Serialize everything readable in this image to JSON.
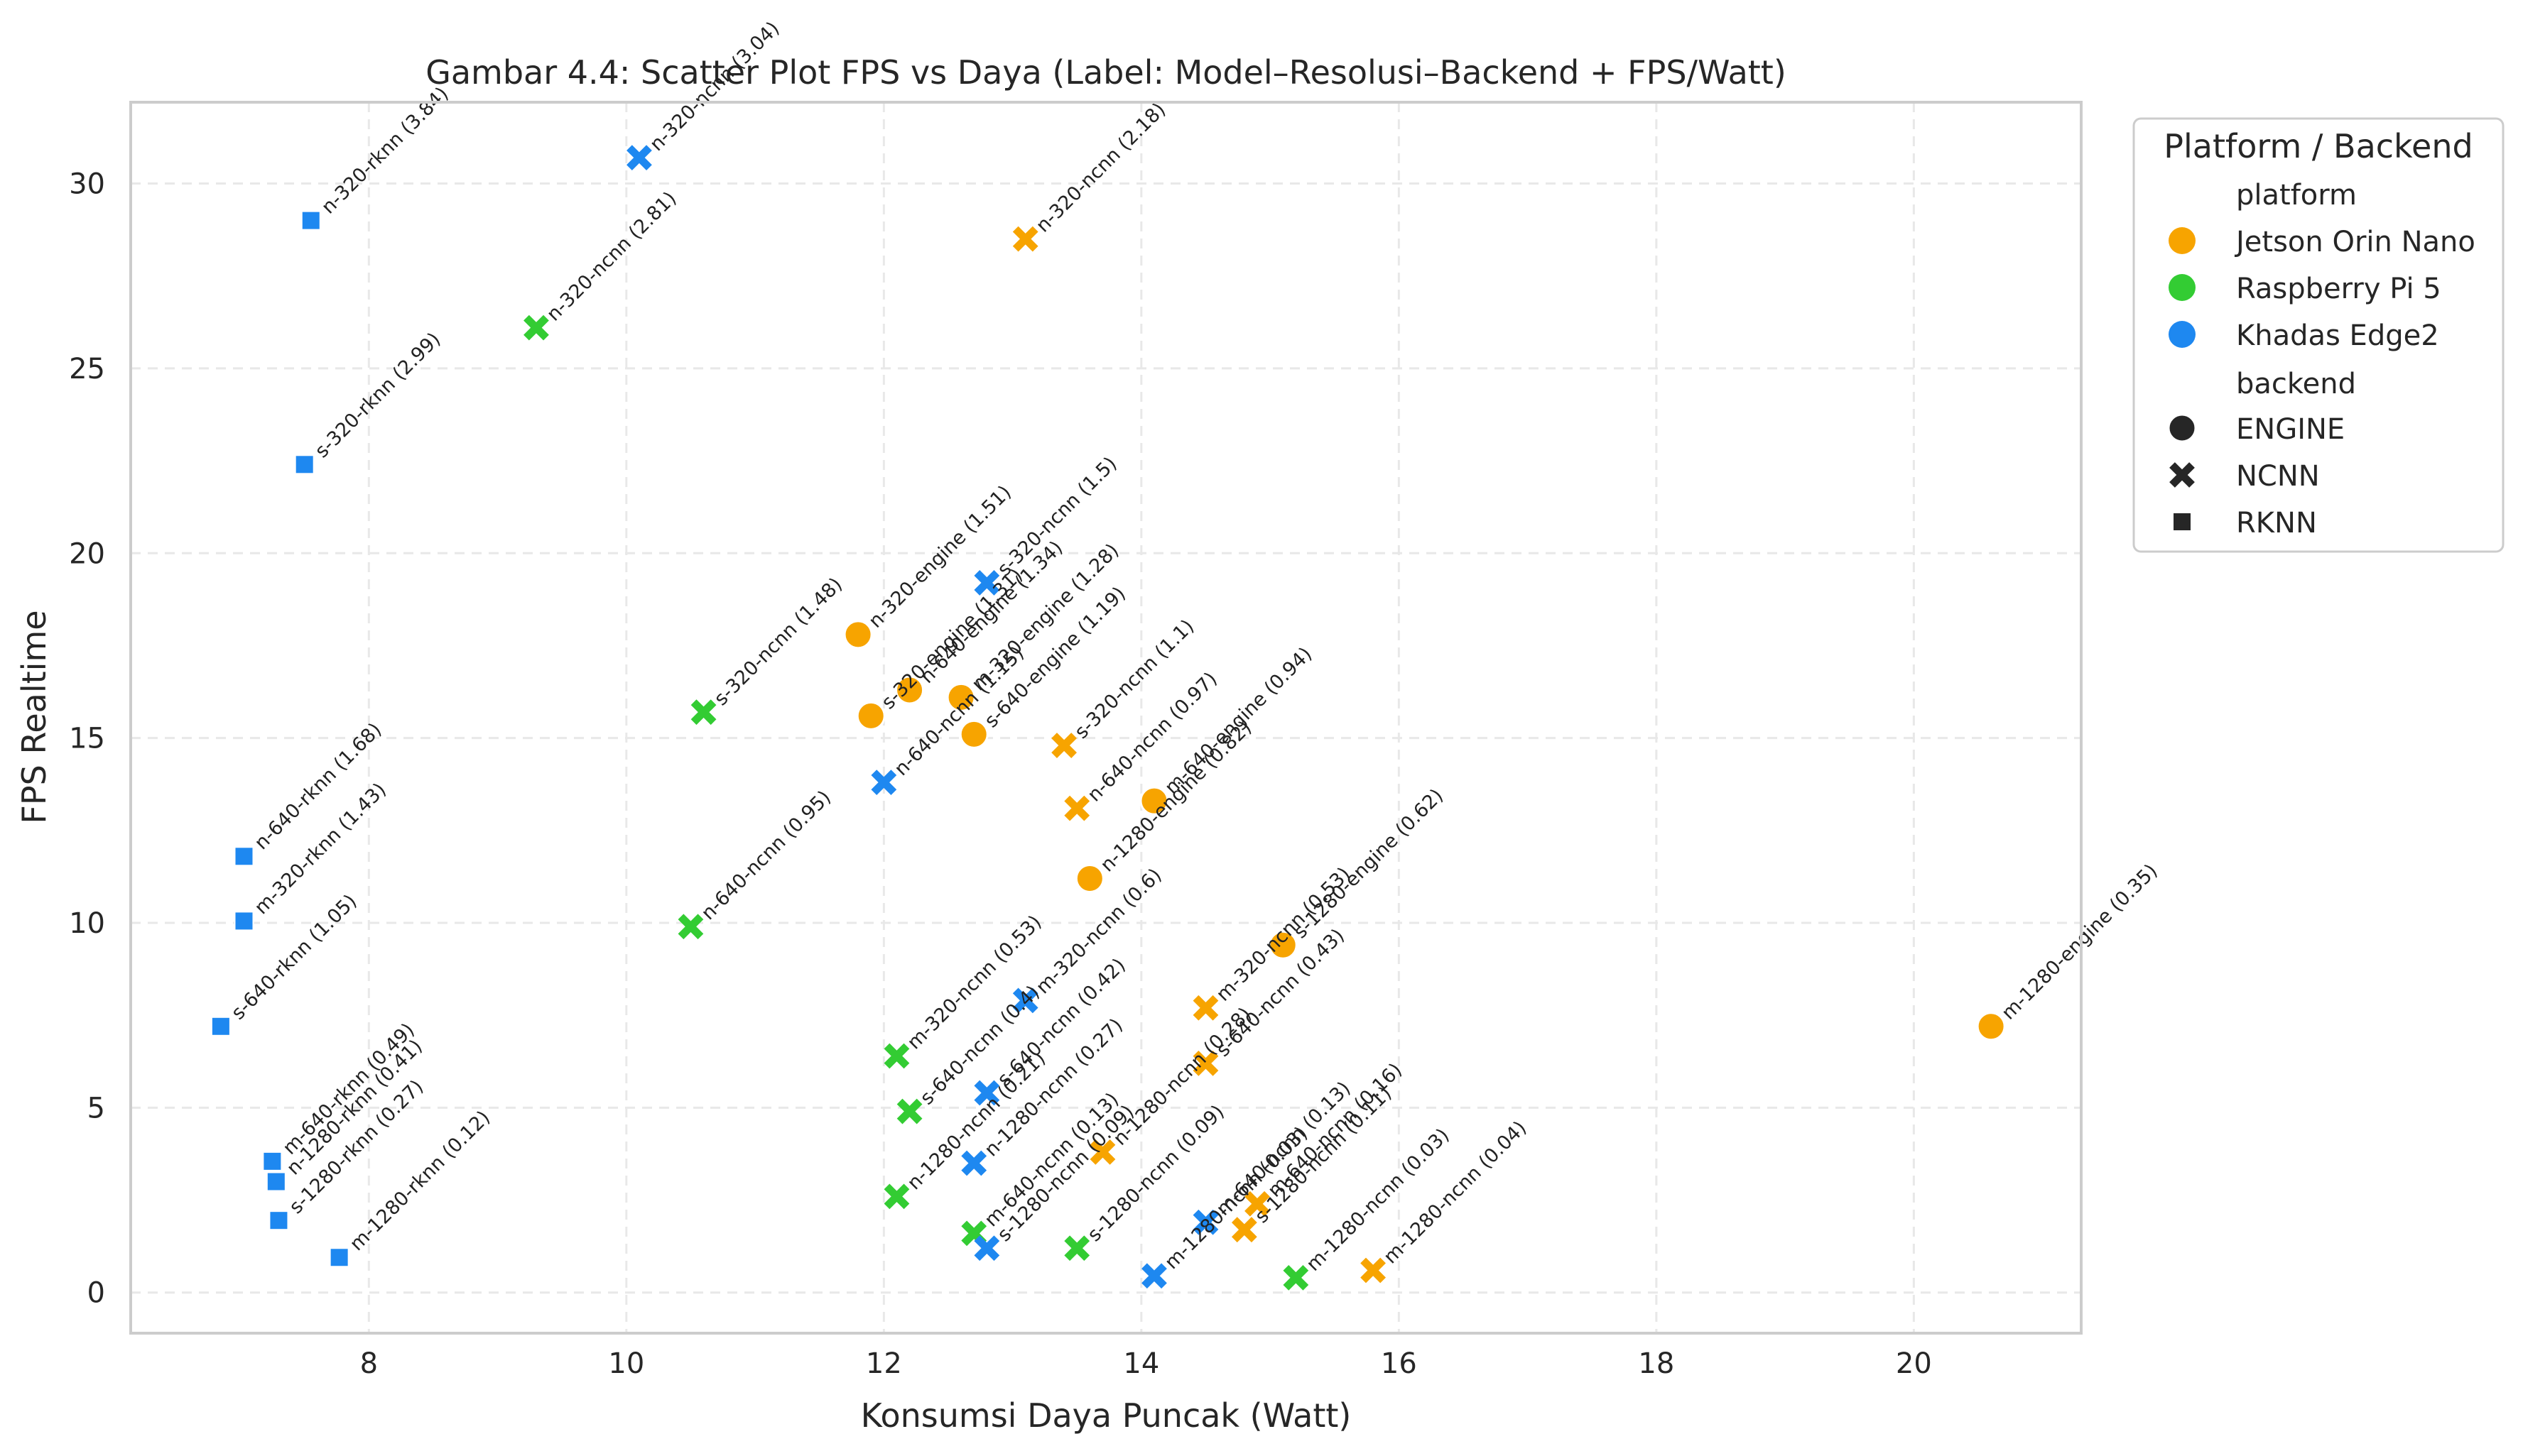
{
  "chart_data": {
    "type": "scatter",
    "title": "Gambar 4.4: Scatter Plot FPS vs Daya (Label: Model–Resolusi–Backend + FPS/Watt)",
    "xlabel": "Konsumsi Daya Puncak (Watt)",
    "ylabel": "FPS Realtime",
    "xlim": [
      6.15,
      21.3
    ],
    "ylim": [
      -1.1,
      32.2
    ],
    "xticks": [
      8,
      10,
      12,
      14,
      16,
      18,
      20
    ],
    "yticks": [
      0,
      5,
      10,
      15,
      20,
      25,
      30
    ],
    "grid": true,
    "legend": {
      "placement": "outside-right-top",
      "title": "Platform / Backend",
      "hue_header": "platform",
      "style_header": "backend",
      "platforms": [
        {
          "name": "Jetson Orin Nano",
          "color": "#F7A400"
        },
        {
          "name": "Raspberry Pi 5",
          "color": "#33CC33"
        },
        {
          "name": "Khadas Edge2",
          "color": "#1E88F0"
        }
      ],
      "backends": [
        {
          "name": "ENGINE",
          "marker": "circle"
        },
        {
          "name": "NCNN",
          "marker": "x"
        },
        {
          "name": "RKNN",
          "marker": "square"
        }
      ]
    },
    "points": [
      {
        "platform": "Jetson Orin Nano",
        "backend": "ENGINE",
        "x": 11.8,
        "y": 17.8,
        "label": "n-320-engine (1.51)"
      },
      {
        "platform": "Jetson Orin Nano",
        "backend": "ENGINE",
        "x": 11.9,
        "y": 15.6,
        "label": "s-320-engine (1.31)"
      },
      {
        "platform": "Jetson Orin Nano",
        "backend": "ENGINE",
        "x": 12.2,
        "y": 16.3,
        "label": "n-640-engine (1.34)"
      },
      {
        "platform": "Jetson Orin Nano",
        "backend": "ENGINE",
        "x": 12.6,
        "y": 16.1,
        "label": "m-320-engine (1.28)"
      },
      {
        "platform": "Jetson Orin Nano",
        "backend": "ENGINE",
        "x": 12.7,
        "y": 15.1,
        "label": "s-640-engine (1.19)"
      },
      {
        "platform": "Jetson Orin Nano",
        "backend": "ENGINE",
        "x": 14.1,
        "y": 13.3,
        "label": "m-640-engine (0.94)"
      },
      {
        "platform": "Jetson Orin Nano",
        "backend": "ENGINE",
        "x": 13.6,
        "y": 11.2,
        "label": "n-1280-engine (0.82)"
      },
      {
        "platform": "Jetson Orin Nano",
        "backend": "ENGINE",
        "x": 15.1,
        "y": 9.4,
        "label": "s-1280-engine (0.62)"
      },
      {
        "platform": "Jetson Orin Nano",
        "backend": "ENGINE",
        "x": 20.6,
        "y": 7.2,
        "label": "m-1280-engine (0.35)"
      },
      {
        "platform": "Jetson Orin Nano",
        "backend": "NCNN",
        "x": 13.1,
        "y": 28.5,
        "label": "n-320-ncnn (2.18)"
      },
      {
        "platform": "Jetson Orin Nano",
        "backend": "NCNN",
        "x": 13.4,
        "y": 14.8,
        "label": "s-320-ncnn (1.1)"
      },
      {
        "platform": "Jetson Orin Nano",
        "backend": "NCNN",
        "x": 13.5,
        "y": 13.1,
        "label": "n-640-ncnn (0.97)"
      },
      {
        "platform": "Jetson Orin Nano",
        "backend": "NCNN",
        "x": 14.5,
        "y": 7.7,
        "label": "m-320-ncnn (0.53)"
      },
      {
        "platform": "Jetson Orin Nano",
        "backend": "NCNN",
        "x": 14.5,
        "y": 6.2,
        "label": "s-640-ncnn (0.43)"
      },
      {
        "platform": "Jetson Orin Nano",
        "backend": "NCNN",
        "x": 13.7,
        "y": 3.8,
        "label": "n-1280-ncnn (0.28)"
      },
      {
        "platform": "Jetson Orin Nano",
        "backend": "NCNN",
        "x": 14.9,
        "y": 2.4,
        "label": "m-640-ncnn (0.16)"
      },
      {
        "platform": "Jetson Orin Nano",
        "backend": "NCNN",
        "x": 14.8,
        "y": 1.7,
        "label": "s-1280-ncnn (0.11)"
      },
      {
        "platform": "Jetson Orin Nano",
        "backend": "NCNN",
        "x": 15.8,
        "y": 0.6,
        "label": "m-1280-ncnn (0.04)"
      },
      {
        "platform": "Raspberry Pi 5",
        "backend": "NCNN",
        "x": 9.3,
        "y": 26.1,
        "label": "n-320-ncnn (2.81)"
      },
      {
        "platform": "Raspberry Pi 5",
        "backend": "NCNN",
        "x": 10.6,
        "y": 15.7,
        "label": "s-320-ncnn (1.48)"
      },
      {
        "platform": "Raspberry Pi 5",
        "backend": "NCNN",
        "x": 10.5,
        "y": 9.9,
        "label": "n-640-ncnn (0.95)"
      },
      {
        "platform": "Raspberry Pi 5",
        "backend": "NCNN",
        "x": 12.1,
        "y": 6.4,
        "label": "m-320-ncnn (0.53)"
      },
      {
        "platform": "Raspberry Pi 5",
        "backend": "NCNN",
        "x": 12.2,
        "y": 4.9,
        "label": "s-640-ncnn (0.4)"
      },
      {
        "platform": "Raspberry Pi 5",
        "backend": "NCNN",
        "x": 12.1,
        "y": 2.6,
        "label": "n-1280-ncnn (0.21)"
      },
      {
        "platform": "Raspberry Pi 5",
        "backend": "NCNN",
        "x": 12.7,
        "y": 1.6,
        "label": "m-640-ncnn (0.13)"
      },
      {
        "platform": "Raspberry Pi 5",
        "backend": "NCNN",
        "x": 13.5,
        "y": 1.2,
        "label": "s-1280-ncnn (0.09)"
      },
      {
        "platform": "Raspberry Pi 5",
        "backend": "NCNN",
        "x": 15.2,
        "y": 0.4,
        "label": "m-1280-ncnn (0.03)"
      },
      {
        "platform": "Khadas Edge2",
        "backend": "NCNN",
        "x": 10.1,
        "y": 30.7,
        "label": "n-320-ncnn (3.04)"
      },
      {
        "platform": "Khadas Edge2",
        "backend": "NCNN",
        "x": 12.8,
        "y": 19.2,
        "label": "s-320-ncnn (1.5)"
      },
      {
        "platform": "Khadas Edge2",
        "backend": "NCNN",
        "x": 12.0,
        "y": 13.8,
        "label": "n-640-ncnn (1.15)"
      },
      {
        "platform": "Khadas Edge2",
        "backend": "NCNN",
        "x": 13.1,
        "y": 7.9,
        "label": "m-320-ncnn (0.6)"
      },
      {
        "platform": "Khadas Edge2",
        "backend": "NCNN",
        "x": 12.8,
        "y": 5.4,
        "label": "s-640-ncnn (0.42)"
      },
      {
        "platform": "Khadas Edge2",
        "backend": "NCNN",
        "x": 12.7,
        "y": 3.5,
        "label": "n-1280-ncnn (0.27)"
      },
      {
        "platform": "Khadas Edge2",
        "backend": "NCNN",
        "x": 12.8,
        "y": 1.2,
        "label": "s-1280-ncnn (0.09)"
      },
      {
        "platform": "Khadas Edge2",
        "backend": "NCNN",
        "x": 14.5,
        "y": 1.9,
        "label": "m-640-ncnn (0.13)"
      },
      {
        "platform": "Khadas Edge2",
        "backend": "NCNN",
        "x": 14.1,
        "y": 0.45,
        "label": "m-1280-ncnn (0.03)"
      },
      {
        "platform": "Khadas Edge2",
        "backend": "RKNN",
        "x": 7.55,
        "y": 29.0,
        "label": "n-320-rknn (3.84)"
      },
      {
        "platform": "Khadas Edge2",
        "backend": "RKNN",
        "x": 7.5,
        "y": 22.4,
        "label": "s-320-rknn (2.99)"
      },
      {
        "platform": "Khadas Edge2",
        "backend": "RKNN",
        "x": 7.03,
        "y": 11.8,
        "label": "n-640-rknn (1.68)"
      },
      {
        "platform": "Khadas Edge2",
        "backend": "RKNN",
        "x": 7.03,
        "y": 10.05,
        "label": "m-320-rknn (1.43)"
      },
      {
        "platform": "Khadas Edge2",
        "backend": "RKNN",
        "x": 6.85,
        "y": 7.2,
        "label": "s-640-rknn (1.05)"
      },
      {
        "platform": "Khadas Edge2",
        "backend": "RKNN",
        "x": 7.25,
        "y": 3.55,
        "label": "m-640-rknn (0.49)"
      },
      {
        "platform": "Khadas Edge2",
        "backend": "RKNN",
        "x": 7.28,
        "y": 3.0,
        "label": "n-1280-rknn (0.41)"
      },
      {
        "platform": "Khadas Edge2",
        "backend": "RKNN",
        "x": 7.3,
        "y": 1.95,
        "label": "s-1280-rknn (0.27)"
      },
      {
        "platform": "Khadas Edge2",
        "backend": "RKNN",
        "x": 7.77,
        "y": 0.95,
        "label": "m-1280-rknn (0.12)"
      }
    ]
  }
}
